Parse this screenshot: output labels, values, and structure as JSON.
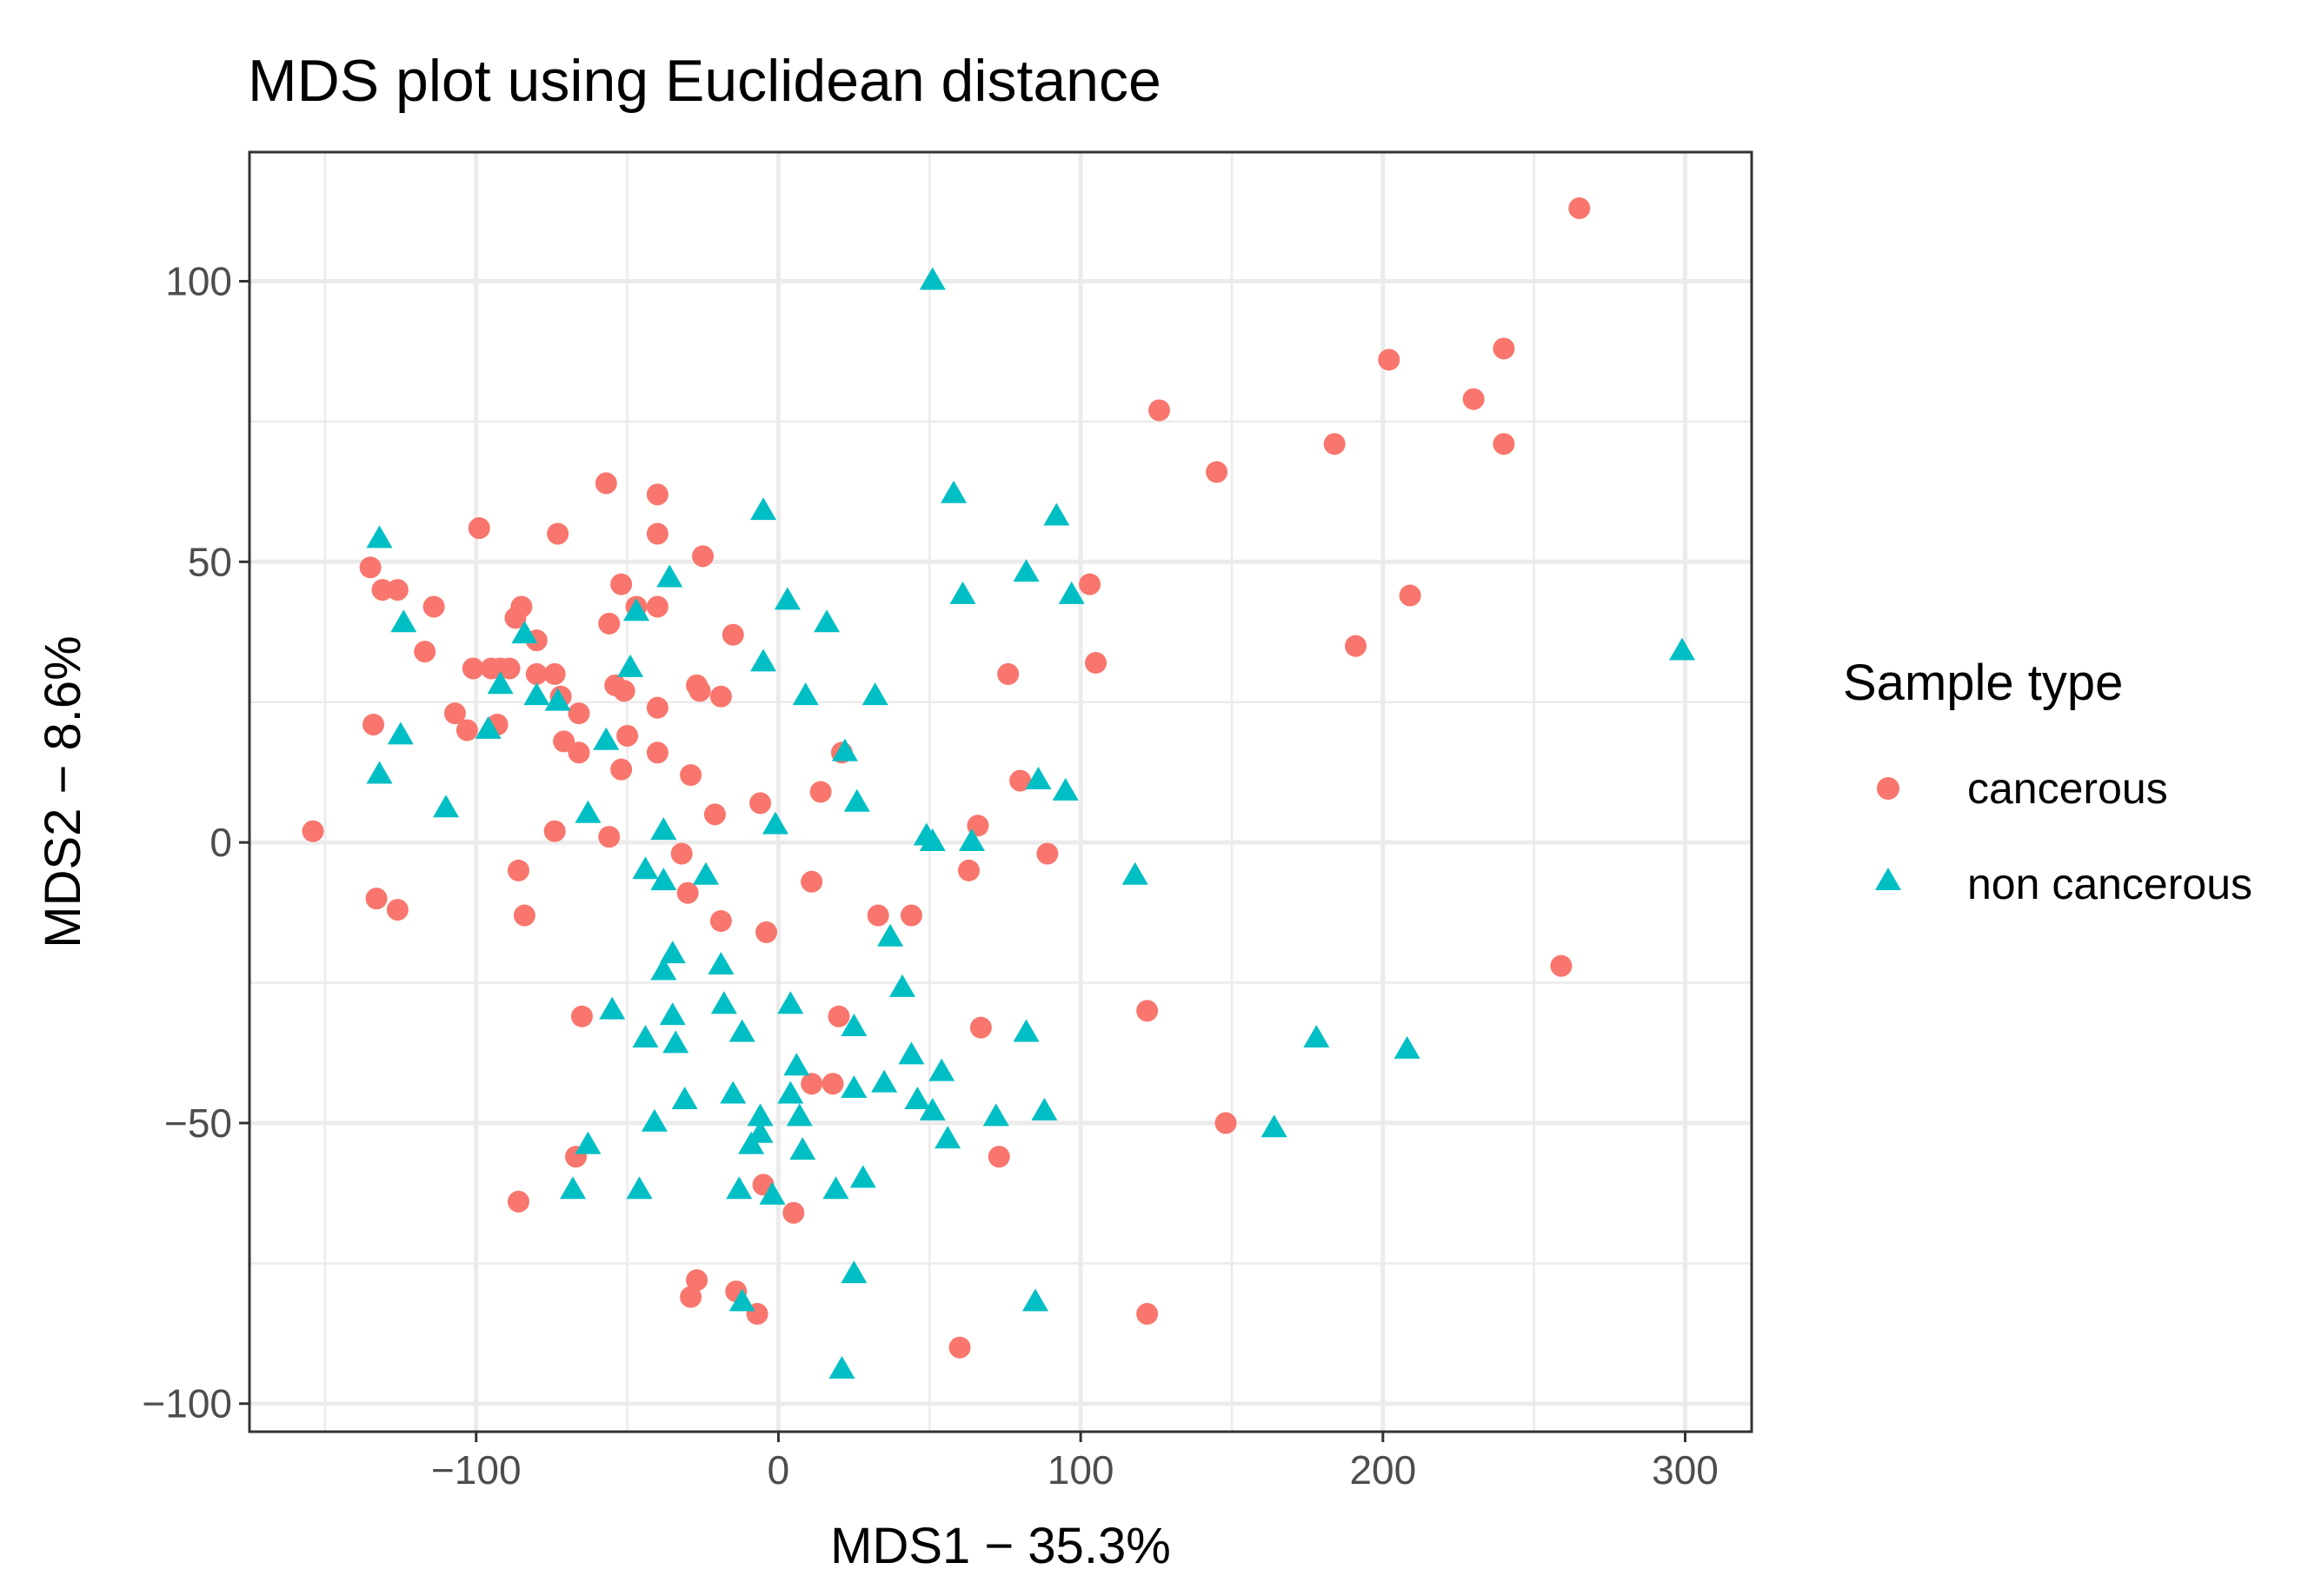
{
  "chart_data": {
    "type": "scatter",
    "title": "MDS plot using Euclidean distance",
    "xlabel": "MDS1 − 35.3%",
    "ylabel": "MDS2 − 8.6%",
    "xlim": [
      -175,
      322
    ],
    "ylim": [
      -105,
      123
    ],
    "x_ticks": [
      -100,
      0,
      100,
      200,
      300
    ],
    "x_tick_labels": [
      "−100",
      "0",
      "100",
      "200",
      "300"
    ],
    "y_ticks": [
      -100,
      -50,
      0,
      50,
      100
    ],
    "y_tick_labels": [
      "−100",
      "−50",
      "0",
      "50",
      "100"
    ],
    "grid": true,
    "legend": {
      "title": "Sample type",
      "position": "right",
      "entries": [
        {
          "label": "cancerous",
          "shape": "circle",
          "color": "#F8766D"
        },
        {
          "label": "non cancerous",
          "shape": "triangle",
          "color": "#00BFC4"
        }
      ]
    },
    "series": [
      {
        "name": "cancerous",
        "shape": "circle",
        "color": "#F8766D",
        "points": [
          [
            -154,
            2
          ],
          [
            -135,
            49
          ],
          [
            -131,
            45
          ],
          [
            -126,
            45
          ],
          [
            -134,
            21
          ],
          [
            -133,
            -10
          ],
          [
            -126,
            -12
          ],
          [
            -114,
            42
          ],
          [
            -117,
            34
          ],
          [
            -107,
            23
          ],
          [
            -103,
            20
          ],
          [
            -101,
            31
          ],
          [
            -99,
            56
          ],
          [
            -95,
            31
          ],
          [
            -93,
            21
          ],
          [
            -92,
            31
          ],
          [
            -89,
            31
          ],
          [
            -87,
            40
          ],
          [
            -85,
            42
          ],
          [
            -80,
            36
          ],
          [
            -80,
            30
          ],
          [
            -74,
            30
          ],
          [
            -73,
            55
          ],
          [
            -74,
            2
          ],
          [
            -72,
            26
          ],
          [
            -71,
            18
          ],
          [
            -66,
            23
          ],
          [
            -66,
            16
          ],
          [
            -65,
            -31
          ],
          [
            -67,
            -56
          ],
          [
            -86,
            -5
          ],
          [
            -84,
            -13
          ],
          [
            -86,
            -64
          ],
          [
            -57,
            64
          ],
          [
            -56,
            39
          ],
          [
            -56,
            1
          ],
          [
            -54,
            28
          ],
          [
            -52,
            46
          ],
          [
            -52,
            13
          ],
          [
            -51,
            27
          ],
          [
            -50,
            19
          ],
          [
            -47,
            42
          ],
          [
            -40,
            42
          ],
          [
            -40,
            62
          ],
          [
            -40,
            55
          ],
          [
            -40,
            24
          ],
          [
            -40,
            16
          ],
          [
            -32,
            -2
          ],
          [
            -30,
            -9
          ],
          [
            -29,
            12
          ],
          [
            -27,
            28
          ],
          [
            -26,
            27
          ],
          [
            -25,
            51
          ],
          [
            -21,
            5
          ],
          [
            -19,
            26
          ],
          [
            -19,
            -14
          ],
          [
            -15,
            37
          ],
          [
            -6,
            7
          ],
          [
            -4,
            -16
          ],
          [
            -5,
            -61
          ],
          [
            5,
            -66
          ],
          [
            11,
            -7
          ],
          [
            14,
            9
          ],
          [
            11,
            -43
          ],
          [
            18,
            -43
          ],
          [
            20,
            -31
          ],
          [
            21,
            16
          ],
          [
            33,
            -13
          ],
          [
            44,
            -13
          ],
          [
            63,
            -5
          ],
          [
            66,
            3
          ],
          [
            67,
            -33
          ],
          [
            73,
            -56
          ],
          [
            76,
            30
          ],
          [
            80,
            11
          ],
          [
            89,
            -2
          ],
          [
            103,
            46
          ],
          [
            105,
            32
          ],
          [
            122,
            -30
          ],
          [
            122,
            -84
          ],
          [
            126,
            77
          ],
          [
            145,
            66
          ],
          [
            148,
            -50
          ],
          [
            184,
            71
          ],
          [
            191,
            35
          ],
          [
            202,
            86
          ],
          [
            209,
            44
          ],
          [
            230,
            79
          ],
          [
            240,
            88
          ],
          [
            240,
            71
          ],
          [
            259,
            -22
          ],
          [
            265,
            113
          ],
          [
            -29,
            -81
          ],
          [
            -27,
            -78
          ],
          [
            -14,
            -80
          ],
          [
            -7,
            -84
          ],
          [
            60,
            -90
          ]
        ]
      },
      {
        "name": "non cancerous",
        "shape": "triangle",
        "color": "#00BFC4",
        "points": [
          [
            -132,
            54
          ],
          [
            -132,
            12
          ],
          [
            -124,
            39
          ],
          [
            -125,
            19
          ],
          [
            -110,
            6
          ],
          [
            -96,
            20
          ],
          [
            -92,
            28
          ],
          [
            -84,
            37
          ],
          [
            -80,
            26
          ],
          [
            -73,
            25
          ],
          [
            -63,
            5
          ],
          [
            -63,
            -54
          ],
          [
            -68,
            -62
          ],
          [
            -57,
            18
          ],
          [
            -55,
            -30
          ],
          [
            -49,
            31
          ],
          [
            -47,
            41
          ],
          [
            -44,
            -5
          ],
          [
            -44,
            -35
          ],
          [
            -46,
            -62
          ],
          [
            -41,
            -50
          ],
          [
            -38,
            -23
          ],
          [
            -38,
            2
          ],
          [
            -38,
            -7
          ],
          [
            -36,
            47
          ],
          [
            -35,
            -20
          ],
          [
            -35,
            -31
          ],
          [
            -34,
            -36
          ],
          [
            -31,
            -46
          ],
          [
            -24,
            -6
          ],
          [
            -19,
            -22
          ],
          [
            -18,
            -29
          ],
          [
            -15,
            -45
          ],
          [
            -12,
            -34
          ],
          [
            -13,
            -62
          ],
          [
            -12,
            -82
          ],
          [
            -9,
            -54
          ],
          [
            -6,
            -49
          ],
          [
            -6,
            -52
          ],
          [
            -5,
            32
          ],
          [
            -5,
            59
          ],
          [
            -2,
            -63
          ],
          [
            -1,
            3
          ],
          [
            3,
            43
          ],
          [
            4,
            -29
          ],
          [
            4,
            -45
          ],
          [
            6,
            -40
          ],
          [
            7,
            -49
          ],
          [
            8,
            -55
          ],
          [
            9,
            26
          ],
          [
            16,
            39
          ],
          [
            19,
            -62
          ],
          [
            21,
            -94
          ],
          [
            22,
            16
          ],
          [
            25,
            -44
          ],
          [
            25,
            -33
          ],
          [
            26,
            7
          ],
          [
            25,
            -77
          ],
          [
            28,
            -60
          ],
          [
            32,
            26
          ],
          [
            35,
            -43
          ],
          [
            37,
            -17
          ],
          [
            41,
            -26
          ],
          [
            44,
            -38
          ],
          [
            46,
            -46
          ],
          [
            49,
            1
          ],
          [
            51,
            0
          ],
          [
            51,
            100
          ],
          [
            51,
            -48
          ],
          [
            54,
            -41
          ],
          [
            56,
            -53
          ],
          [
            58,
            62
          ],
          [
            61,
            44
          ],
          [
            64,
            0
          ],
          [
            72,
            -49
          ],
          [
            82,
            48
          ],
          [
            82,
            -34
          ],
          [
            85,
            -82
          ],
          [
            86,
            11
          ],
          [
            88,
            -48
          ],
          [
            92,
            58
          ],
          [
            95,
            9
          ],
          [
            97,
            44
          ],
          [
            118,
            -6
          ],
          [
            164,
            -51
          ],
          [
            178,
            -35
          ],
          [
            208,
            -37
          ],
          [
            299,
            34
          ]
        ]
      }
    ]
  }
}
